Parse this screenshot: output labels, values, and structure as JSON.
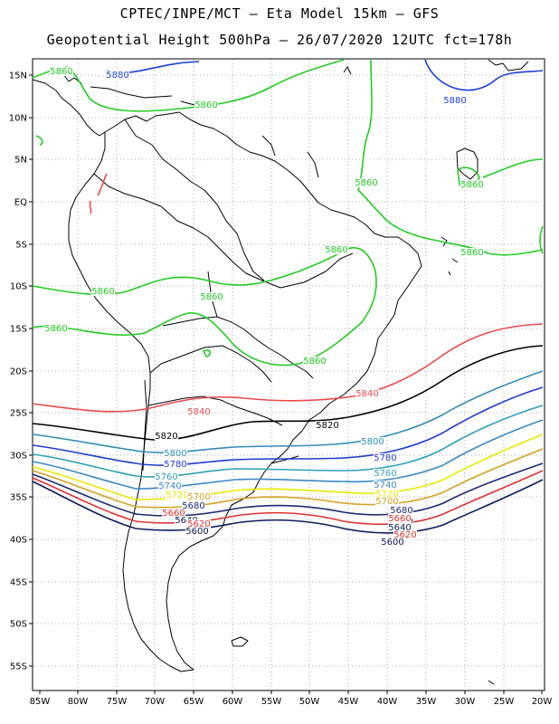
{
  "title_line1": "CPTEC/INPE/MCT –  Eta Model 15km – GFS",
  "title_line2": "Geopotential Height 500hPa – 26/07/2020 12UTC fct=178h",
  "lon_labels": [
    "85W",
    "80W",
    "75W",
    "70W",
    "65W",
    "60W",
    "55W",
    "50W",
    "45W",
    "40W",
    "35W",
    "30W",
    "25W",
    "20W"
  ],
  "lat_labels": [
    "15N",
    "10N",
    "5N",
    "EQ",
    "5S",
    "10S",
    "15S",
    "20S",
    "25S",
    "30S",
    "35S",
    "40S",
    "45S",
    "50S",
    "55S"
  ],
  "colors": {
    "c5880": "#1a3fd6",
    "c5860": "#22cc22",
    "c5840": "#e84a4a",
    "c5820": "#000000",
    "c5800": "#2f8bb5",
    "c5780": "#1e3cd0",
    "c5760": "#2ca0b8",
    "c5740": "#3b88c2",
    "c5720": "#e8e800",
    "c5700": "#d4a020",
    "c5680": "#1a2a70",
    "c5660": "#e03030",
    "c5640": "#0b1a5a",
    "c5600": "#0a1450",
    "coast": "#000000",
    "grid": "#808080"
  },
  "contour_labels": {
    "c5880": [
      "5880",
      "5880"
    ],
    "c5860": [
      "5860",
      "5860",
      "5860",
      "5860",
      "5860",
      "5860",
      "5860",
      "5860",
      "5860"
    ],
    "c5840": [
      "5840",
      "5840"
    ],
    "c5820": [
      "5820",
      "5820"
    ],
    "c5800": [
      "5800",
      "5800"
    ],
    "c5780": [
      "5780",
      "5780"
    ],
    "c5760": [
      "5760",
      "5760"
    ],
    "c5740": [
      "5740",
      "5740"
    ],
    "c5720": [
      "5720",
      "5720"
    ],
    "c5700": [
      "5700",
      "5700"
    ],
    "c5680": [
      "5680",
      "5680",
      "5680"
    ],
    "c5660": [
      "5660",
      "5660"
    ],
    "c5640": [
      "5640",
      "5640"
    ],
    "c5620": [
      "5620",
      "5620"
    ],
    "c5600": [
      "5600",
      "5600"
    ]
  }
}
